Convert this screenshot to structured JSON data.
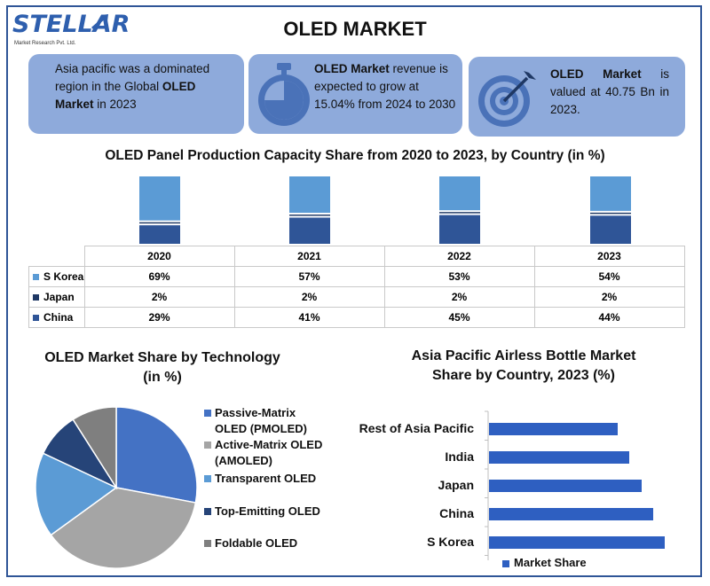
{
  "header": {
    "logo_text": "STELLAR",
    "logo_subtitle": "Market Research Pvt. Ltd.",
    "title": "OLED MARKET"
  },
  "cards": [
    {
      "pre": "Asia pacific was a dominated region in the Global ",
      "bold": "OLED Market",
      "post": " in 2023",
      "icon": "none"
    },
    {
      "pre": "",
      "bold": "OLED Market",
      "post": " revenue is expected to grow at 15.04% from 2024 to 2030",
      "icon": "stopwatch-icon"
    },
    {
      "pre": "",
      "bold": "OLED Market",
      "post": " is valued at 40.75 Bn in 2023.",
      "icon": "target-icon"
    }
  ],
  "colors": {
    "card_bg": "#8eaadb",
    "s_korea": "#5b9bd5",
    "japan": "#1f3864",
    "china": "#2f5597",
    "pie_passive": "#4472c4",
    "pie_active": "#a5a5a5",
    "pie_transparent": "#5b9bd5",
    "pie_top": "#264478",
    "pie_foldable": "#7f7f7f",
    "hbar": "#2e5fc1"
  },
  "chart_data": [
    {
      "type": "bar",
      "title": "OLED Panel Production Capacity Share from 2020 to 2023, by Country (in %)",
      "categories": [
        "2020",
        "2021",
        "2022",
        "2023"
      ],
      "series": [
        {
          "name": "S Korea",
          "values": [
            69,
            57,
            53,
            54
          ]
        },
        {
          "name": "Japan",
          "values": [
            2,
            2,
            2,
            2
          ]
        },
        {
          "name": "China",
          "values": [
            29,
            41,
            45,
            44
          ]
        }
      ],
      "table_values": [
        [
          "69%",
          "57%",
          "53%",
          "54%"
        ],
        [
          "2%",
          "2%",
          "2%",
          "2%"
        ],
        [
          "29%",
          "41%",
          "45%",
          "44%"
        ]
      ]
    },
    {
      "type": "pie",
      "title": "OLED Market Share by Technology (in %)",
      "title_line1": "OLED Market Share by Technology",
      "title_line2": "(in %)",
      "labels": [
        "Passive-Matrix OLED (PMOLED)",
        "Active-Matrix OLED (AMOLED)",
        "Transparent OLED",
        "Top-Emitting OLED",
        "Foldable OLED"
      ],
      "legend_lines": [
        [
          "Passive-Matrix",
          "OLED (PMOLED)"
        ],
        [
          "Active-Matrix OLED",
          "(AMOLED)"
        ],
        [
          "Transparent OLED"
        ],
        [
          "Top-Emitting OLED"
        ],
        [
          "Foldable OLED"
        ]
      ],
      "values": [
        28,
        37,
        17,
        9,
        9
      ]
    },
    {
      "type": "bar",
      "orientation": "horizontal",
      "title": "Asia Pacific Airless Bottle Market Share by Country, 2023 (%)",
      "title_line1": "Asia Pacific Airless Bottle Market",
      "title_line2": "Share by Country, 2023 (%)",
      "categories": [
        "Rest of Asia Pacific",
        "India",
        "Japan",
        "China",
        "S Korea"
      ],
      "series": [
        {
          "name": "Market Share",
          "values": [
            14.5,
            15.8,
            17.2,
            18.5,
            19.8
          ]
        }
      ],
      "xlim": [
        0,
        25
      ]
    }
  ]
}
